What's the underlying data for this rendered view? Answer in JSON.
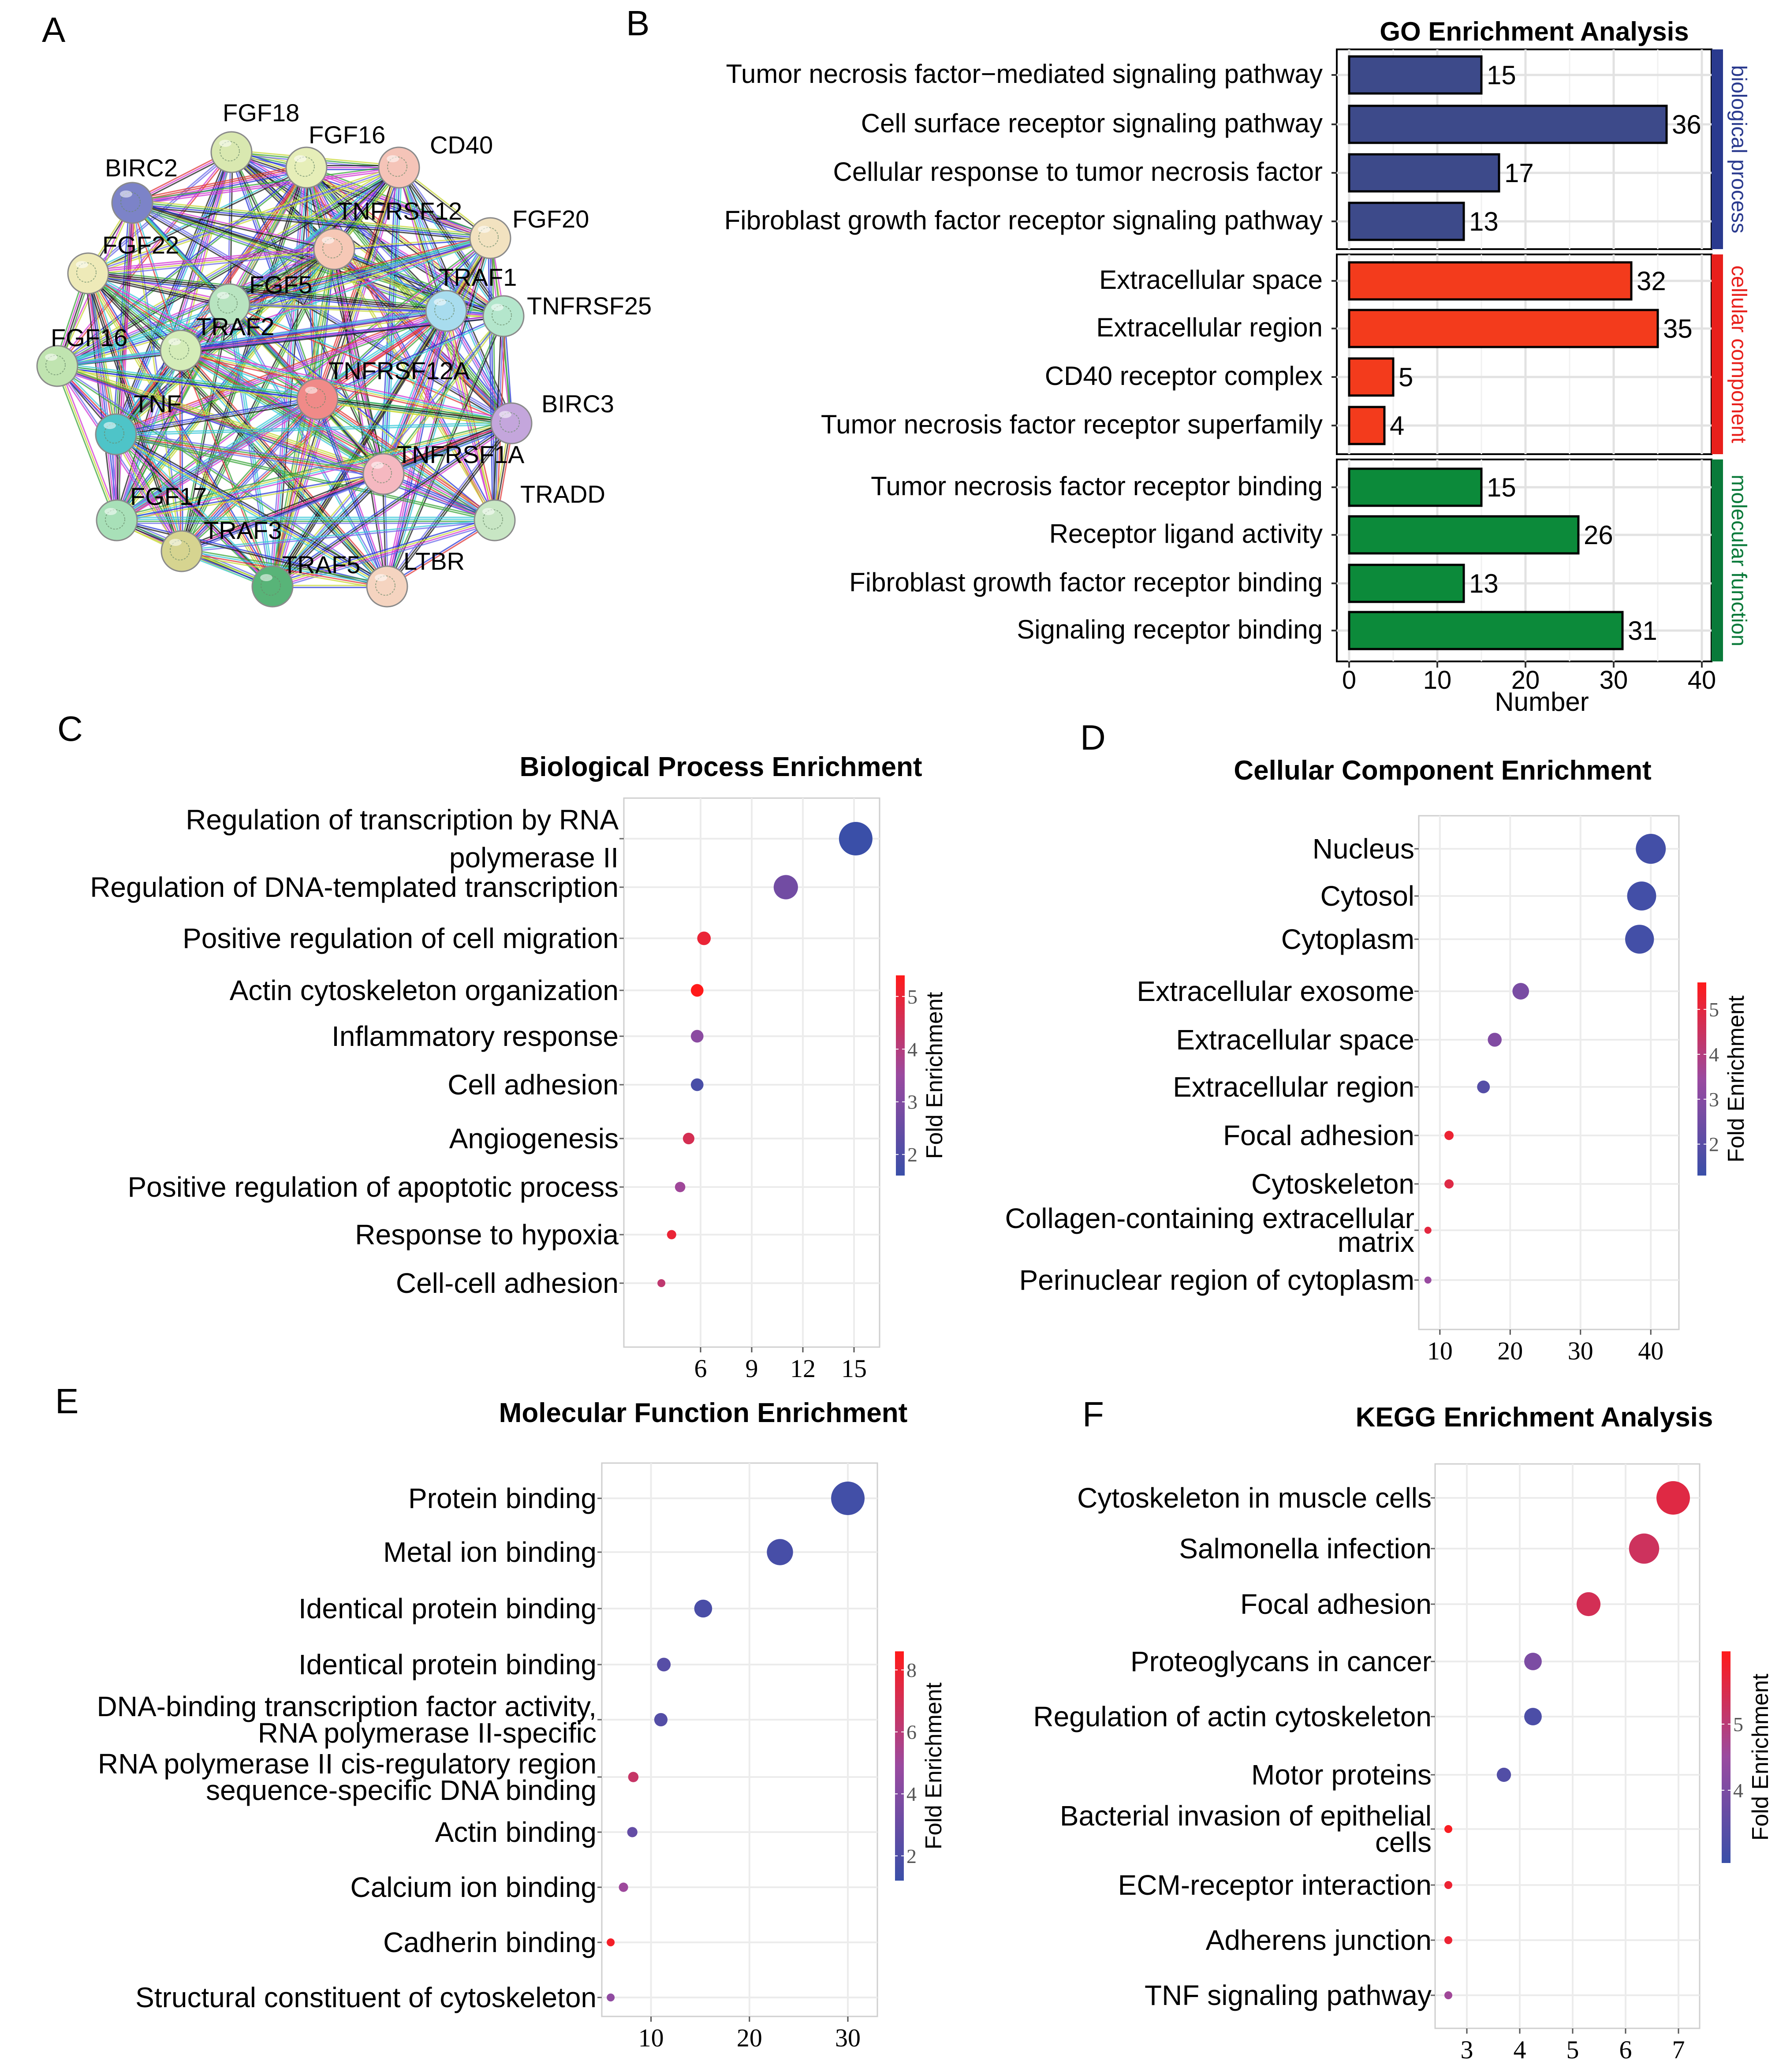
{
  "panel_labels": {
    "a": "A",
    "b": "B",
    "c": "C",
    "d": "D",
    "e": "E",
    "f": "F"
  },
  "colors": {
    "bp": "#3d4a8a",
    "cc": "#f33b1c",
    "mf": "#0c8a3a",
    "bp_strip": "#2a3a8e",
    "cc_strip": "#e8201c",
    "mf_strip": "#0a7a3a",
    "cbar_low": "#3a4fa8",
    "cbar_mid": "#9a4aa0",
    "cbar_high": "#ff1a1a"
  },
  "network": {
    "nodes": [
      {
        "id": "FGF18",
        "color": "#d9e8b0"
      },
      {
        "id": "FGF16",
        "color": "#e6eeb8"
      },
      {
        "id": "CD40",
        "color": "#f5c4b8"
      },
      {
        "id": "BIRC2",
        "color": "#7c83c8"
      },
      {
        "id": "TNFRSF12",
        "color": "#f6c8b6"
      },
      {
        "id": "FGF20",
        "color": "#f2e2c0"
      },
      {
        "id": "FGF22",
        "color": "#eeeab8"
      },
      {
        "id": "FGF5",
        "color": "#b8e4c0"
      },
      {
        "id": "TRAF1",
        "color": "#a8dcee"
      },
      {
        "id": "TNFRSF25",
        "color": "#b4e6cc"
      },
      {
        "id": "TRAF2",
        "color": "#d4ecb8"
      },
      {
        "id": "FGF16_2",
        "color": "#c0e4b0"
      },
      {
        "id": "TNFRSF12A",
        "color": "#f08a88"
      },
      {
        "id": "BIRC3",
        "color": "#c4a6dc"
      },
      {
        "id": "TNF",
        "color": "#4ec4c8"
      },
      {
        "id": "TNFRSF1A",
        "color": "#f5b8c0"
      },
      {
        "id": "TRADD",
        "color": "#c8e6c4"
      },
      {
        "id": "FGF17",
        "color": "#a8e0b8"
      },
      {
        "id": "TRAF3",
        "color": "#d6d490"
      },
      {
        "id": "TRAF5",
        "color": "#58b478"
      },
      {
        "id": "LTBR",
        "color": "#f5d4c0"
      }
    ],
    "labels": [
      "FGF18",
      "FGF16",
      "CD40",
      "BIRC2",
      "TNFRSF12",
      "FGF20",
      "FGF22",
      "FGF5",
      "TRAF1",
      "TNFRSF25",
      "TRAF2",
      "FGF16",
      "TNFRSF12A",
      "BIRC3",
      "TNF",
      "TNFRSF1A",
      "TRADD",
      "FGF17",
      "TRAF3",
      "TRAF5",
      "LTBR"
    ]
  },
  "chart_data": [
    {
      "panel": "B",
      "type": "bar",
      "orientation": "horizontal",
      "title": "GO Enrichment Analysis",
      "xlabel": "Number",
      "xlim": [
        0,
        40
      ],
      "xticks": [
        0,
        10,
        20,
        30,
        40
      ],
      "groups": [
        {
          "name": "biological process",
          "color_key": "bp",
          "categories": [
            "Tumor necrosis factor−mediated signaling  pathway",
            "Cell surface receptor signaling pathway",
            "Cellular response to tumor necrosis factor",
            "Fibroblast growth factor receptor signaling pathway"
          ],
          "values": [
            15,
            36,
            17,
            13
          ]
        },
        {
          "name": "cellular component",
          "color_key": "cc",
          "categories": [
            "Extracellular space",
            "Extracellular region",
            "CD40 receptor complex",
            "Tumor necrosis factor receptor superfamily"
          ],
          "values": [
            32,
            35,
            5,
            4
          ]
        },
        {
          "name": "molecular function",
          "color_key": "mf",
          "categories": [
            "Tumor necrosis factor receptor binding",
            "Receptor ligand activity",
            "Fibroblast growth factor receptor binding",
            "Signaling receptor binding"
          ],
          "values": [
            15,
            26,
            13,
            31
          ]
        }
      ]
    },
    {
      "panel": "C",
      "type": "scatter",
      "title": "Biological Process Enrichment",
      "xlim": [
        1.5,
        16.5
      ],
      "xticks": [
        6,
        9,
        12,
        15
      ],
      "categories": [
        "Regulation of transcription by RNA polymerase II",
        "Regulation of DNA-templated transcription",
        "Positive regulation of cell migration",
        "Actin cytoskeleton organization",
        "Inflammatory response",
        "Cell adhesion",
        "Angiogenesis",
        "Positive regulation of apoptotic process",
        "Response to hypoxia",
        "Cell-cell adhesion"
      ],
      "values": [
        15.1,
        11.0,
        6.2,
        5.8,
        5.8,
        5.8,
        5.3,
        4.8,
        4.3,
        3.7
      ],
      "fold_enrichment": [
        1.6,
        2.7,
        5.0,
        5.5,
        3.2,
        1.9,
        4.6,
        3.6,
        5.0,
        4.2
      ],
      "colorbar": {
        "label": "Fold Enrichment",
        "ticks": [
          2,
          3,
          4,
          5
        ],
        "range": [
          1.6,
          5.4
        ]
      }
    },
    {
      "panel": "D",
      "type": "scatter",
      "title": "Cellular Component Enrichment",
      "xlim": [
        7,
        44
      ],
      "xticks": [
        10,
        20,
        30,
        40
      ],
      "categories": [
        "Nucleus",
        "Cytosol",
        "Cytoplasm",
        "Extracellular exosome",
        "Extracellular  space",
        "Extracellular  region",
        "Focal adhesion",
        "Cytoskeleton",
        "Collagen-containing extracellular matrix",
        "Perinuclear region of cytoplasm"
      ],
      "values": [
        40.0,
        38.7,
        38.4,
        21.5,
        17.8,
        16.2,
        11.3,
        11.3,
        8.3,
        8.3
      ],
      "fold_enrichment": [
        1.5,
        1.5,
        1.5,
        2.7,
        2.9,
        1.9,
        5.2,
        4.9,
        5.0,
        3.4
      ],
      "colorbar": {
        "label": "Fold Enrichment",
        "ticks": [
          2,
          3,
          4,
          5
        ],
        "range": [
          1.3,
          5.6
        ]
      }
    },
    {
      "panel": "E",
      "type": "scatter",
      "title": "Molecular Function Enrichment",
      "xlim": [
        5,
        33
      ],
      "xticks": [
        10,
        20,
        30
      ],
      "categories": [
        "Protein binding",
        "Metal ion binding",
        "Identical protein binding",
        "Identical protein binding",
        "DNA-binding transcription factor activity, RNA polymerase II-specific",
        "RNA polymerase II cis-regulatory region sequence-specific DNA binding",
        "Actin binding",
        "Calcium ion binding",
        "Cadherin binding",
        "Structural constituent of cytoskeleton"
      ],
      "values": [
        30.0,
        23.1,
        15.3,
        11.3,
        11.0,
        8.2,
        8.1,
        7.2,
        5.9,
        5.9
      ],
      "fold_enrichment": [
        1.5,
        1.7,
        1.8,
        2.3,
        2.2,
        6.5,
        2.8,
        5.0,
        8.2,
        4.5
      ],
      "colorbar": {
        "label": "Fold Enrichment",
        "ticks": [
          2,
          4,
          6,
          8
        ],
        "range": [
          1.2,
          8.6
        ]
      }
    },
    {
      "panel": "F",
      "type": "scatter",
      "title": "KEGG Enrichment Analysis",
      "xlim": [
        2.4,
        7.4
      ],
      "xticks": [
        3,
        4,
        5,
        6,
        7
      ],
      "categories": [
        "Cytoskeleton in muscle cells",
        "Salmonella infection",
        "Focal adhesion",
        "Proteoglycans in cancer",
        "Regulation of actin cytoskeleton",
        "Motor proteins",
        "Bacterial invasion of epithelial cells",
        "ECM-receptor interaction",
        "Adherens junction",
        "TNF signaling pathway"
      ],
      "values": [
        6.9,
        6.35,
        5.3,
        4.25,
        4.25,
        3.7,
        2.65,
        2.65,
        2.65,
        2.65
      ],
      "fold_enrichment": [
        5.6,
        5.3,
        5.4,
        4.0,
        3.2,
        3.3,
        6.0,
        5.8,
        5.8,
        4.6
      ],
      "colorbar": {
        "label": "Fold Enrichment",
        "ticks": [
          4,
          5
        ],
        "range": [
          2.9,
          6.1
        ]
      }
    }
  ]
}
